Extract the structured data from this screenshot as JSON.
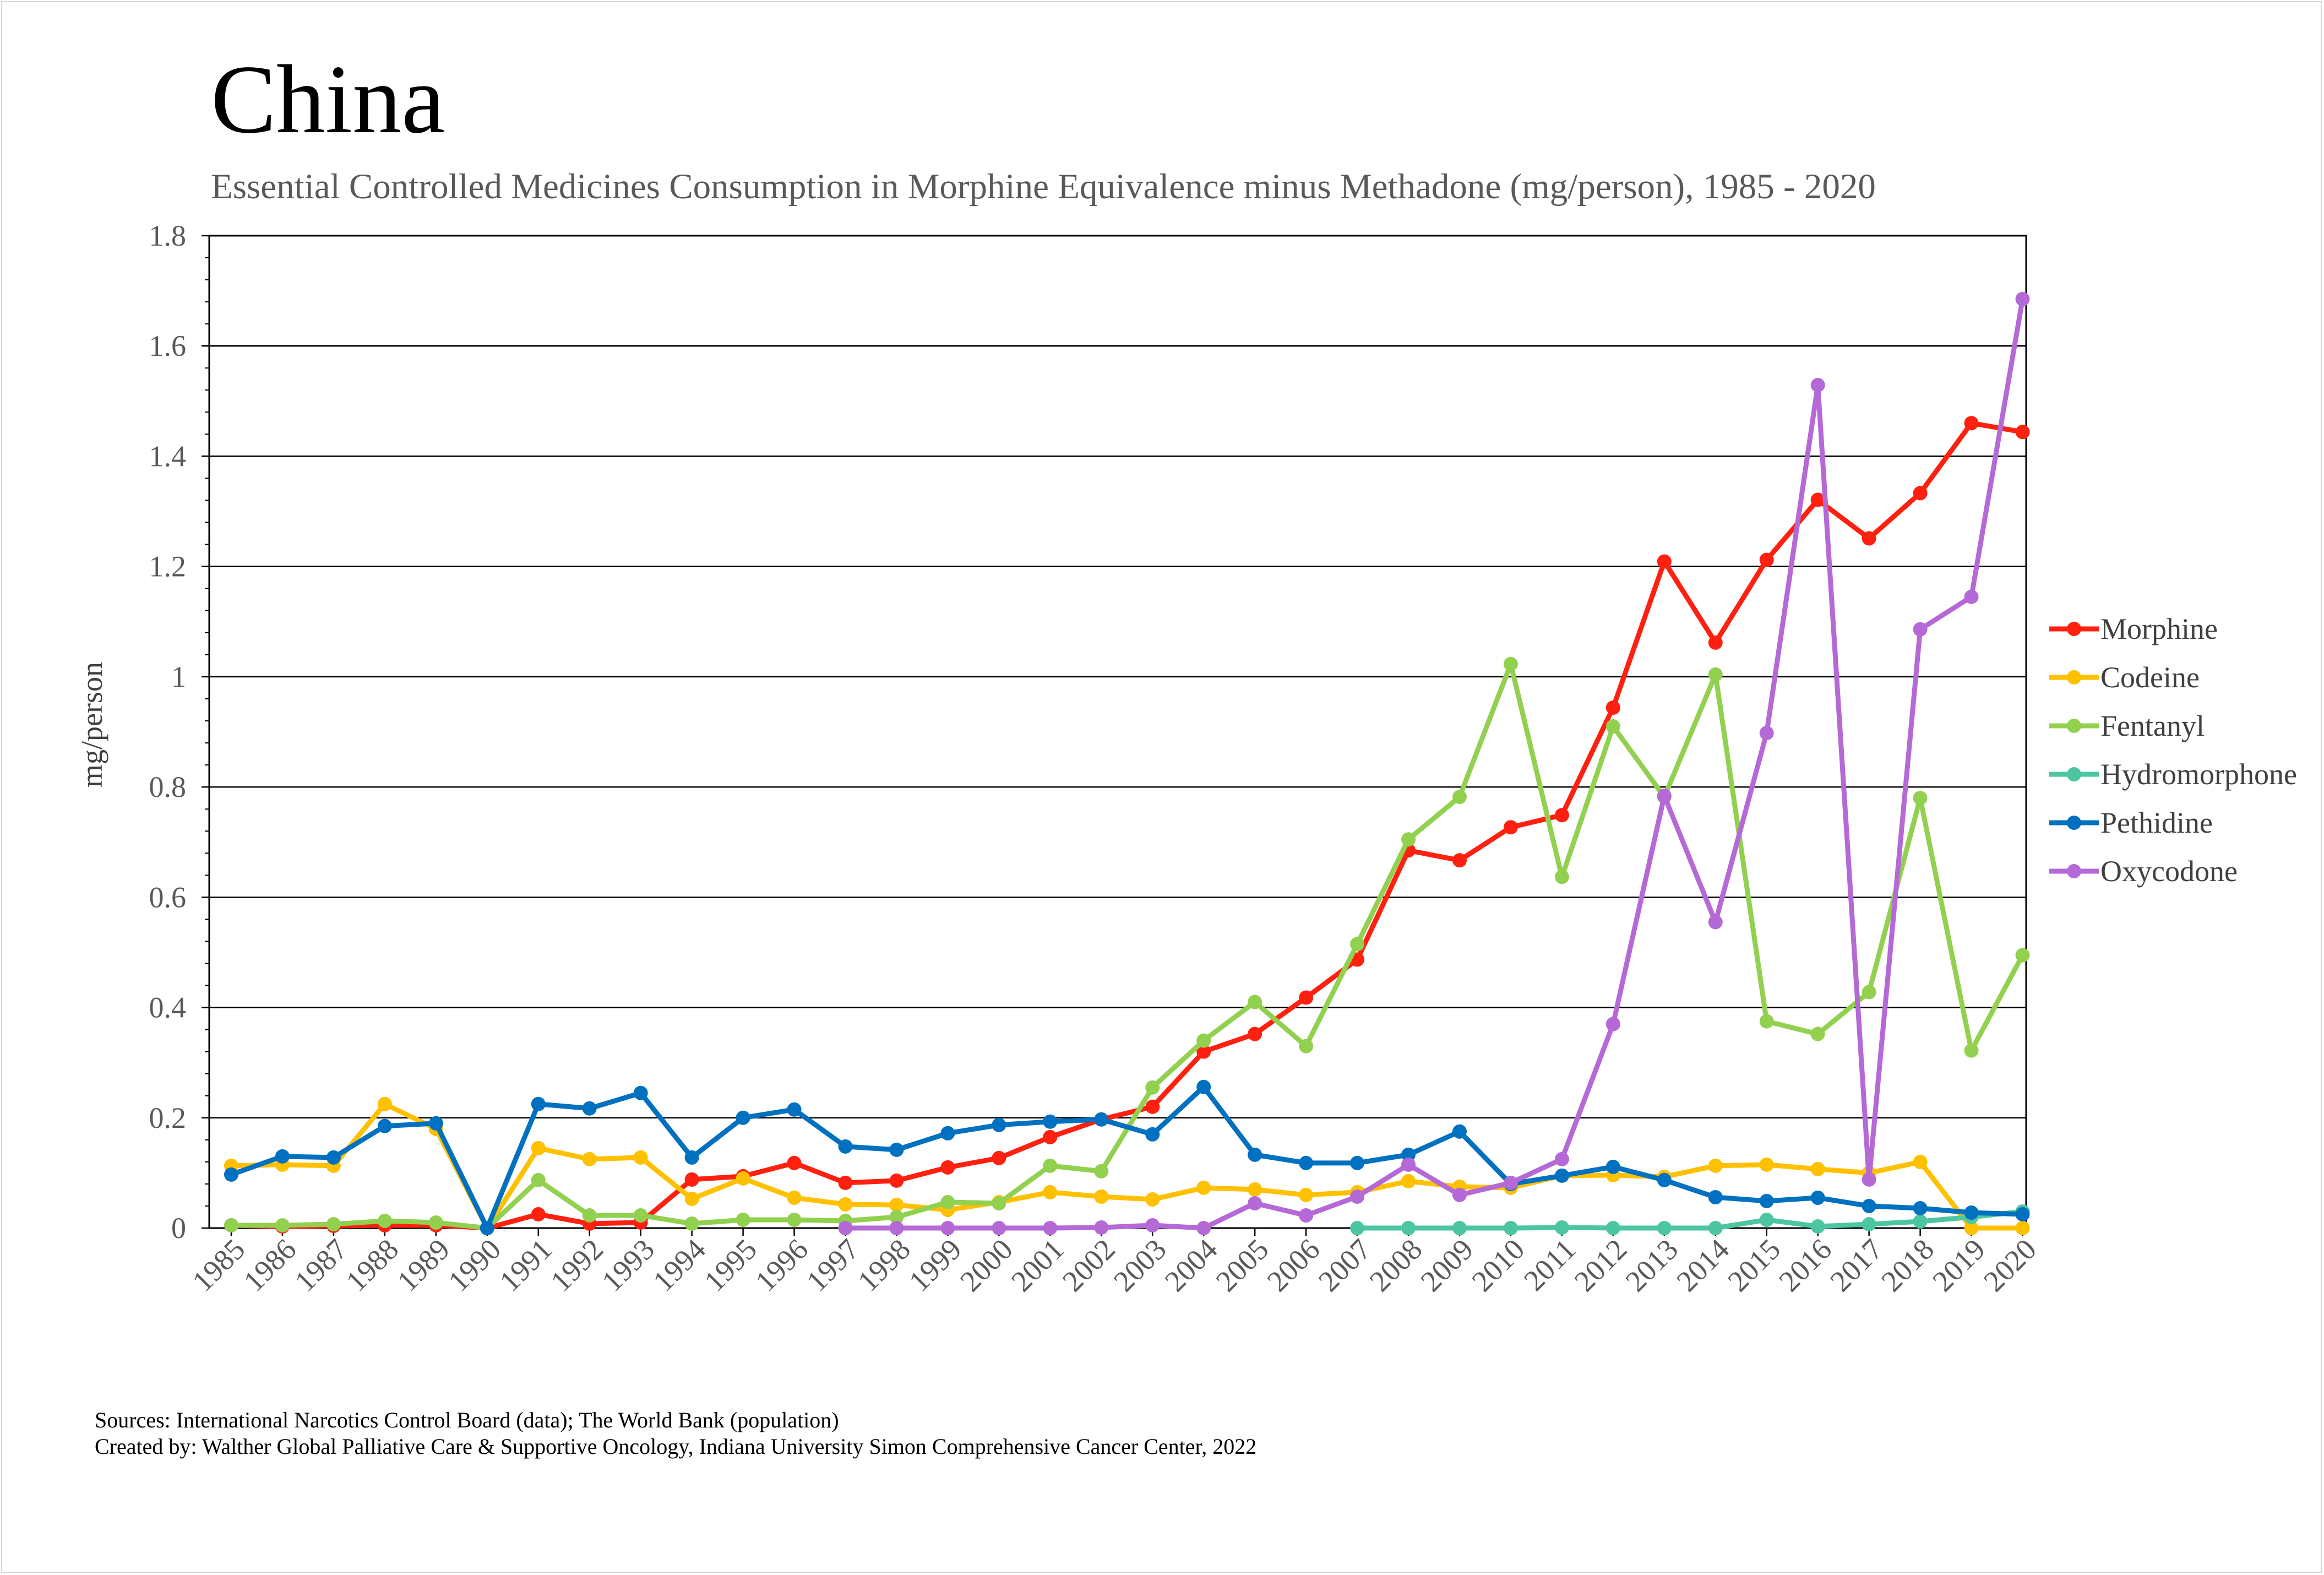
{
  "chart_data": {
    "type": "line",
    "title": "China",
    "subtitle": "Essential Controlled Medicines Consumption in Morphine Equivalence minus Methadone (mg/person), 1985 - 2020",
    "xlabel": "",
    "ylabel": "mg/person",
    "ylim": [
      0,
      1.8
    ],
    "yticks": [
      "0",
      "0.2",
      "0.4",
      "0.6",
      "0.8",
      "1",
      "1.2",
      "1.4",
      "1.6",
      "1.8"
    ],
    "grid": true,
    "legend_position": "right",
    "categories": [
      "1985",
      "1986",
      "1987",
      "1988",
      "1989",
      "1990",
      "1991",
      "1992",
      "1993",
      "1994",
      "1995",
      "1996",
      "1997",
      "1998",
      "1999",
      "2000",
      "2001",
      "2002",
      "2003",
      "2004",
      "2005",
      "2006",
      "2007",
      "2008",
      "2009",
      "2010",
      "2011",
      "2012",
      "2013",
      "2014",
      "2015",
      "2016",
      "2017",
      "2018",
      "2019",
      "2020"
    ],
    "series": [
      {
        "name": "Morphine",
        "color": "#ff2010",
        "values": [
          0.005,
          0.003,
          0.004,
          0.005,
          0.005,
          0.0,
          0.025,
          0.008,
          0.01,
          0.088,
          0.094,
          0.118,
          0.082,
          0.086,
          0.11,
          0.127,
          0.165,
          0.197,
          0.22,
          0.32,
          0.352,
          0.418,
          0.487,
          0.685,
          0.667,
          0.727,
          0.749,
          0.944,
          1.209,
          1.062,
          1.212,
          1.321,
          1.251,
          1.333,
          1.46,
          1.444
        ]
      },
      {
        "name": "Codeine",
        "color": "#ffc000",
        "values": [
          0.113,
          0.115,
          0.113,
          0.225,
          0.18,
          0.0,
          0.145,
          0.125,
          0.128,
          0.053,
          0.09,
          0.055,
          0.043,
          0.042,
          0.033,
          0.047,
          0.065,
          0.057,
          0.052,
          0.073,
          0.07,
          0.06,
          0.065,
          0.085,
          0.075,
          0.073,
          0.095,
          0.096,
          0.093,
          0.113,
          0.115,
          0.107,
          0.1,
          0.12,
          0.0,
          0.0
        ]
      },
      {
        "name": "Fentanyl",
        "color": "#92d050",
        "values": [
          0.005,
          0.005,
          0.007,
          0.013,
          0.01,
          0.0,
          0.087,
          0.023,
          0.023,
          0.008,
          0.015,
          0.015,
          0.013,
          0.02,
          0.047,
          0.045,
          0.113,
          0.103,
          0.255,
          0.34,
          0.41,
          0.33,
          0.515,
          0.705,
          0.782,
          1.023,
          0.637,
          0.91,
          0.782,
          1.004,
          0.375,
          0.352,
          0.428,
          0.78,
          0.322,
          0.495
        ]
      },
      {
        "name": "Hydromorphone",
        "color": "#4cc6a0",
        "values": [
          null,
          null,
          null,
          null,
          null,
          null,
          null,
          null,
          null,
          null,
          null,
          null,
          null,
          null,
          null,
          null,
          null,
          null,
          null,
          null,
          null,
          null,
          0.0,
          0.0,
          0.0,
          0.0,
          0.001,
          0.0,
          0.0,
          0.0,
          0.015,
          0.003,
          0.007,
          0.012,
          0.02,
          0.03
        ]
      },
      {
        "name": "Pethidine",
        "color": "#0070c0",
        "values": [
          0.097,
          0.13,
          0.128,
          0.185,
          0.19,
          0.0,
          0.225,
          0.217,
          0.245,
          0.128,
          0.2,
          0.215,
          0.148,
          0.142,
          0.172,
          0.187,
          0.193,
          0.197,
          0.17,
          0.256,
          0.133,
          0.118,
          0.118,
          0.133,
          0.175,
          0.08,
          0.095,
          0.111,
          0.087,
          0.056,
          0.049,
          0.055,
          0.04,
          0.036,
          0.028,
          0.025
        ]
      },
      {
        "name": "Oxycodone",
        "color": "#b469d6",
        "values": [
          null,
          null,
          null,
          null,
          null,
          null,
          null,
          null,
          null,
          null,
          null,
          null,
          0.0,
          0.0,
          0.0,
          0.0,
          0.0,
          0.001,
          0.005,
          0.0,
          0.045,
          0.023,
          0.057,
          0.115,
          0.06,
          0.082,
          0.125,
          0.37,
          0.784,
          0.555,
          0.898,
          1.529,
          0.088,
          1.086,
          1.145,
          1.685
        ]
      }
    ]
  },
  "footer": {
    "sources": "Sources: International Narcotics Control Board (data); The World Bank (population)",
    "created_by": "Created by: Walther Global Palliative Care & Supportive Oncology, Indiana University Simon Comprehensive Cancer Center, 2022"
  }
}
